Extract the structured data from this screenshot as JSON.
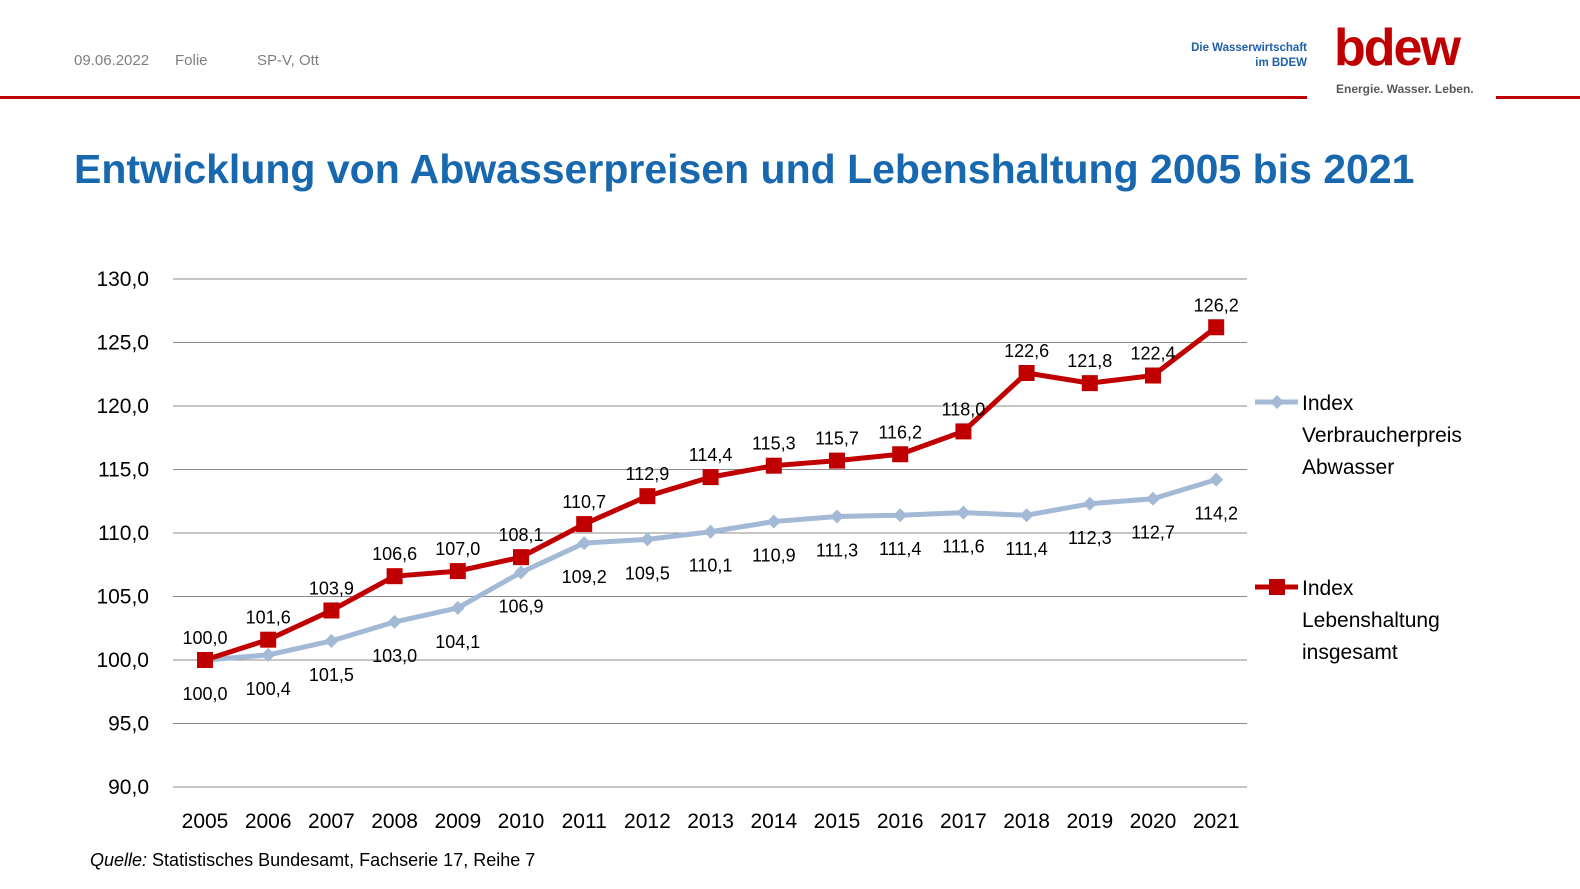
{
  "header": {
    "date": "09.06.2022",
    "folie": "Folie",
    "author": "SP-V, Ott",
    "logo_tagline_1": "Die Wasserwirtschaft",
    "logo_tagline_2": "im BDEW",
    "logo_word": "bdew",
    "logo_slogan": "Energie. Wasser. Leben."
  },
  "title": "Entwicklung von Abwasserpreisen und Lebenshaltung 2005 bis 2021",
  "source": {
    "label": "Quelle:",
    "text": " Statistisches Bundesamt, Fachserie 17, Reihe 7"
  },
  "colors": {
    "brand_red": "#c00000",
    "title_blue": "#1868b0",
    "series_abwasser": "#a3b9d6",
    "series_lebenshaltung": "#c00000"
  },
  "chart_data": {
    "type": "line",
    "title": "Entwicklung von Abwasserpreisen und Lebenshaltung 2005 bis 2021",
    "xlabel": "",
    "ylabel": "",
    "ylim": [
      90,
      130
    ],
    "yticks": [
      90,
      95,
      100,
      105,
      110,
      115,
      120,
      125,
      130
    ],
    "ytick_labels": [
      "90,0",
      "95,0",
      "100,0",
      "105,0",
      "110,0",
      "115,0",
      "120,0",
      "125,0",
      "130,0"
    ],
    "grid": true,
    "legend_position": "right",
    "categories": [
      "2005",
      "2006",
      "2007",
      "2008",
      "2009",
      "2010",
      "2011",
      "2012",
      "2013",
      "2014",
      "2015",
      "2016",
      "2017",
      "2018",
      "2019",
      "2020",
      "2021"
    ],
    "series": [
      {
        "name": "Index Verbraucherpreis Abwasser",
        "legend_lines": [
          "Index",
          "Verbraucherpreis",
          "Abwasser"
        ],
        "marker": "diamond",
        "color": "#a3b9d6",
        "values": [
          100.0,
          100.4,
          101.5,
          103.0,
          104.1,
          106.9,
          109.2,
          109.5,
          110.1,
          110.9,
          111.3,
          111.4,
          111.6,
          111.4,
          112.3,
          112.7,
          114.2
        ],
        "labels": [
          "100,0",
          "100,4",
          "101,5",
          "103,0",
          "104,1",
          "106,9",
          "109,2",
          "109,5",
          "110,1",
          "110,9",
          "111,3",
          "111,4",
          "111,6",
          "111,4",
          "112,3",
          "112,7",
          "114,2"
        ]
      },
      {
        "name": "Index Lebenshaltung insgesamt",
        "legend_lines": [
          "Index",
          "Lebenshaltung",
          "insgesamt"
        ],
        "marker": "square",
        "color": "#c00000",
        "values": [
          100.0,
          101.6,
          103.9,
          106.6,
          107.0,
          108.1,
          110.7,
          112.9,
          114.4,
          115.3,
          115.7,
          116.2,
          118.0,
          122.6,
          121.8,
          122.4,
          126.2
        ],
        "labels": [
          "100,0",
          "101,6",
          "103,9",
          "106,6",
          "107,0",
          "108,1",
          "110,7",
          "112,9",
          "114,4",
          "115,3",
          "115,7",
          "116,2",
          "118,0",
          "122,6",
          "121,8",
          "122,4",
          "126,2"
        ]
      }
    ]
  }
}
